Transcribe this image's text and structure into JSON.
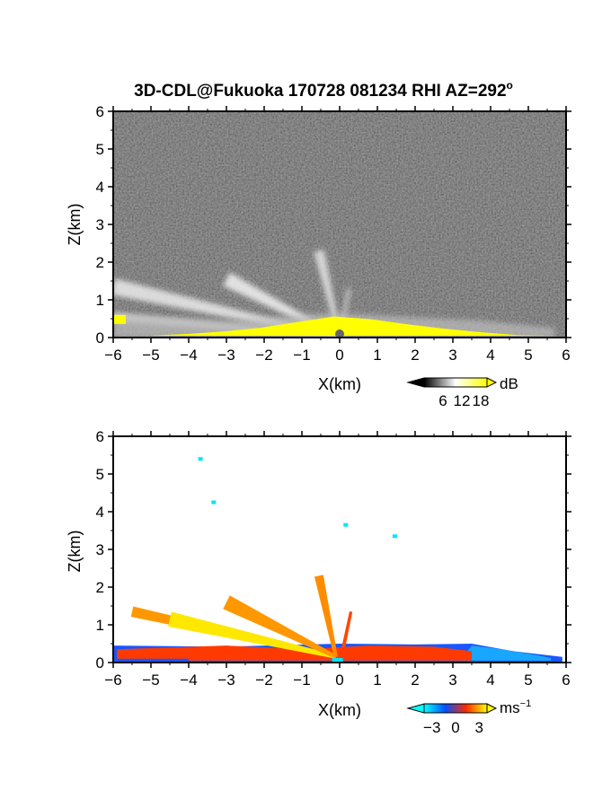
{
  "title": "3D-CDL@Fukuoka 170728 081234 RHI AZ=292",
  "title_degree": "o",
  "chart_data": [
    {
      "type": "heatmap",
      "name": "reflectivity",
      "xlabel": "X(km)",
      "ylabel": "Z(km)",
      "xlim": [
        -6,
        6
      ],
      "ylim": [
        0,
        6
      ],
      "xticks": [
        -6,
        -5,
        -4,
        -3,
        -2,
        -1,
        0,
        1,
        2,
        3,
        4,
        5,
        6
      ],
      "yticks": [
        0,
        1,
        2,
        3,
        4,
        5,
        6
      ],
      "grid": false,
      "background": "noise-gray",
      "colorbar": {
        "unit": "dB",
        "ticks": [
          6,
          12,
          18
        ],
        "range": [
          0,
          20
        ],
        "colors": [
          "#000000",
          "#ffffff",
          "#ffff00"
        ]
      },
      "beams": [
        {
          "x0": 0,
          "z0": 0,
          "x1": -6,
          "z1": 1.35,
          "width": 0.22,
          "intensity": 0.85
        },
        {
          "x0": 0,
          "z0": 0,
          "x1": -3,
          "z1": 1.55,
          "width": 0.2,
          "intensity": 0.9
        },
        {
          "x0": 0,
          "z0": 0,
          "x1": -0.55,
          "z1": 2.3,
          "width": 0.14,
          "intensity": 0.8
        },
        {
          "x0": 0,
          "z0": 0,
          "x1": 0.25,
          "z1": 1.3,
          "width": 0.06,
          "intensity": 0.6
        },
        {
          "x0": 0,
          "z0": 0,
          "x1": -6,
          "z1": 0.55,
          "width": 0.12,
          "intensity": 0.7
        }
      ],
      "high_layer": {
        "x_start": -6,
        "x_end": 5.7,
        "top_z": [
          0.55,
          0.45,
          0.4,
          0.35,
          0.4,
          0.5,
          0.55,
          0.5,
          0.45,
          0.4,
          0.35,
          0.25,
          0.15
        ]
      }
    },
    {
      "type": "heatmap",
      "name": "doppler-velocity",
      "xlabel": "X(km)",
      "ylabel": "Z(km)",
      "xlim": [
        -6,
        6
      ],
      "ylim": [
        0,
        6
      ],
      "xticks": [
        -6,
        -5,
        -4,
        -3,
        -2,
        -1,
        0,
        1,
        2,
        3,
        4,
        5,
        6
      ],
      "yticks": [
        0,
        1,
        2,
        3,
        4,
        5,
        6
      ],
      "grid": false,
      "background": "white",
      "colorbar": {
        "unit": "ms",
        "unit_exponent": "-1",
        "ticks": [
          -3,
          0,
          3
        ],
        "range": [
          -4,
          4
        ],
        "colors": [
          "#00ffff",
          "#0050ff",
          "#ff2a00",
          "#ffff00"
        ]
      },
      "beams": [
        {
          "x0": -0.1,
          "z0": 0.15,
          "x1": -5.5,
          "z1": 1.35,
          "width": 0.14,
          "value": 2.2
        },
        {
          "x0": -0.1,
          "z0": 0.15,
          "x1": -4.5,
          "z1": 1.15,
          "width": 0.2,
          "value": 3.6
        },
        {
          "x0": -0.1,
          "z0": 0.15,
          "x1": -3,
          "z1": 1.6,
          "width": 0.2,
          "value": 2.2
        },
        {
          "x0": -0.1,
          "z0": 0.15,
          "x1": -0.55,
          "z1": 2.3,
          "width": 0.12,
          "value": 2.0
        },
        {
          "x0": 0.1,
          "z0": 0.4,
          "x1": 0.3,
          "z1": 1.35,
          "width": 0.04,
          "value": 0.6
        }
      ],
      "low_layer": {
        "x_start": -6,
        "x_end": 5.9,
        "top_z": 0.5
      },
      "specks": [
        {
          "x": -3.7,
          "z": 5.4,
          "value": -4
        },
        {
          "x": -3.35,
          "z": 4.25,
          "value": -4
        },
        {
          "x": 0.15,
          "z": 3.65,
          "value": -4
        },
        {
          "x": 1.45,
          "z": 3.35,
          "value": -4
        }
      ]
    }
  ]
}
